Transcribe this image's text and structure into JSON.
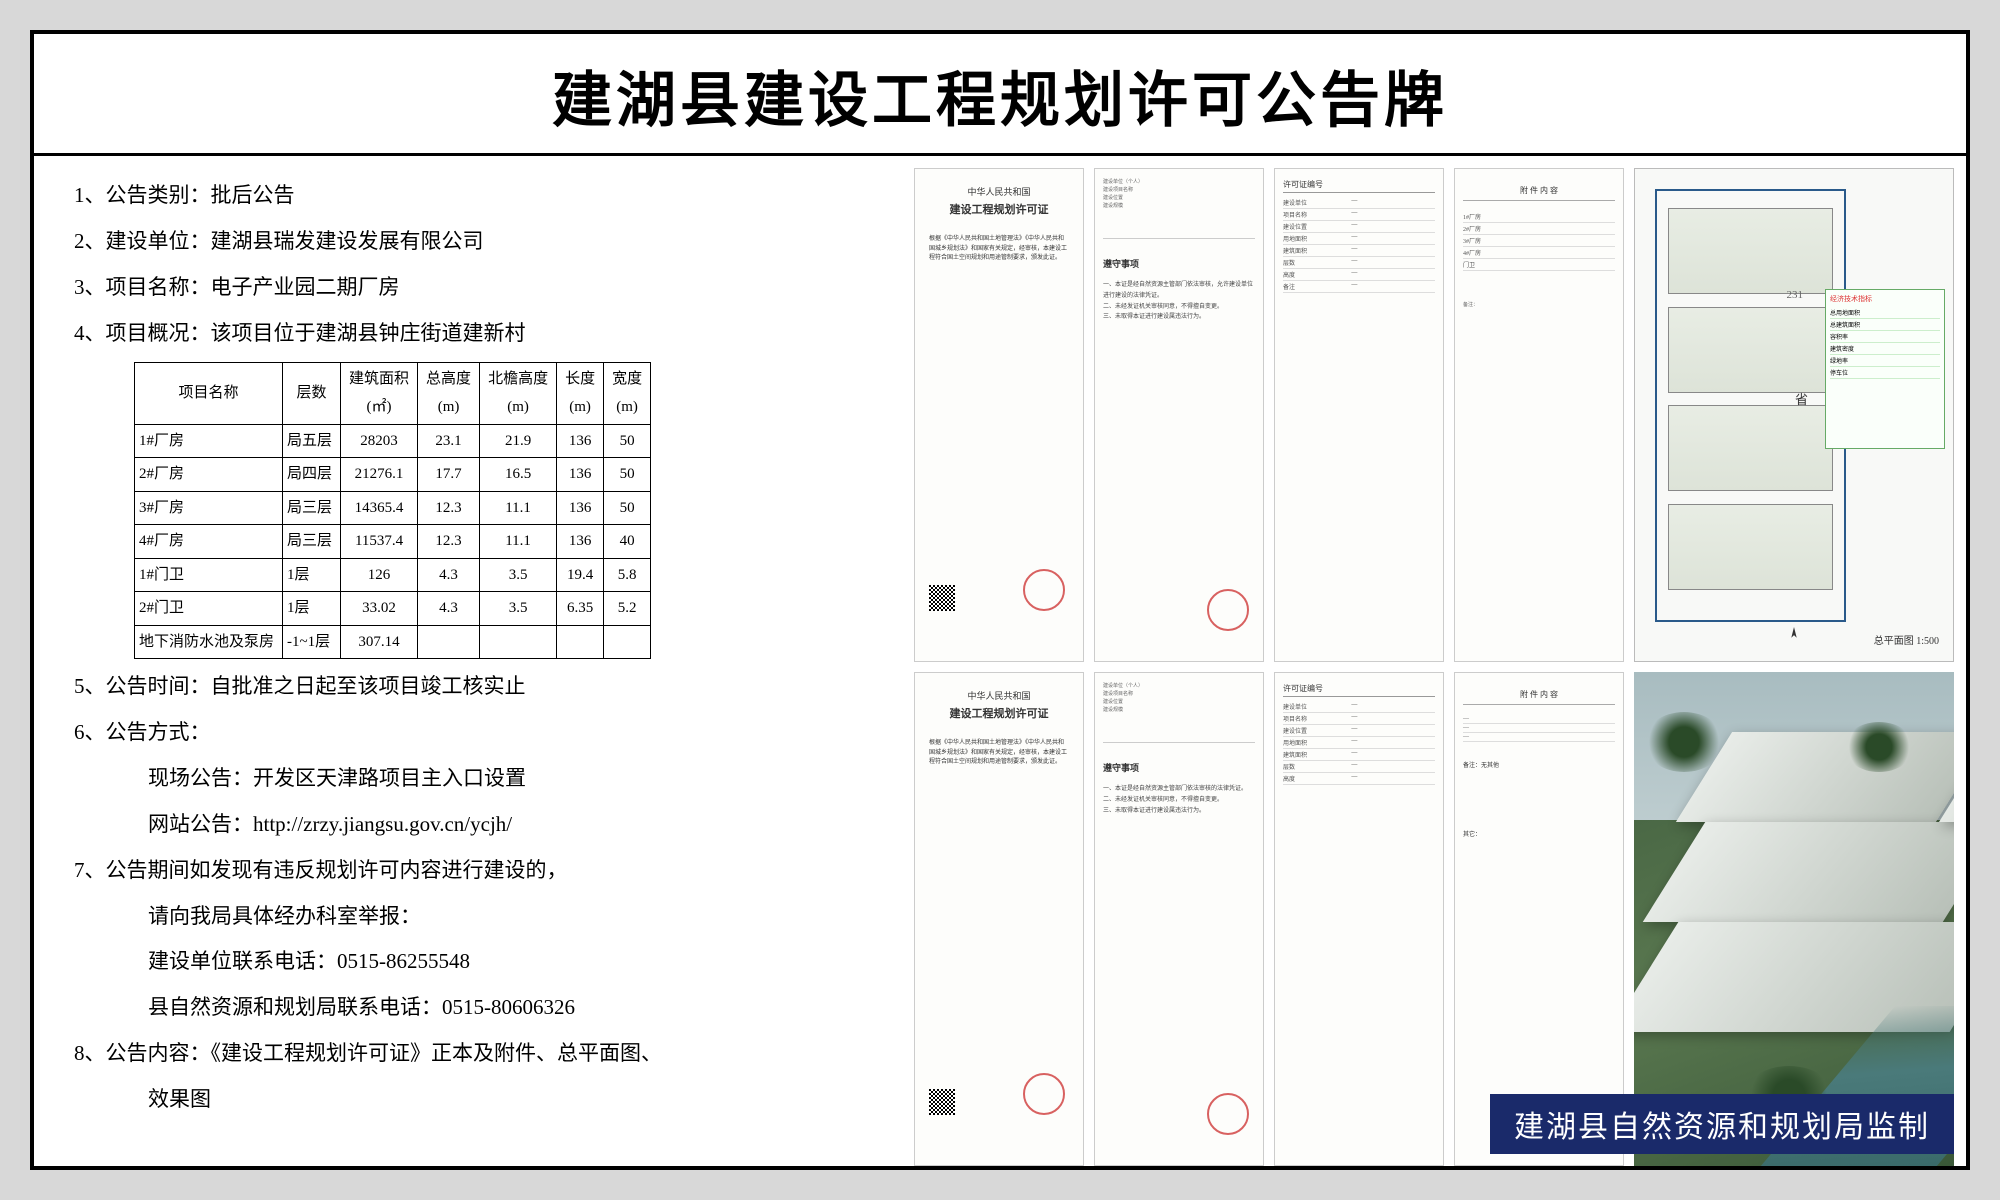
{
  "title": "建湖县建设工程规划许可公告牌",
  "items": {
    "i1": "1、公告类别：批后公告",
    "i2": "2、建设单位：建湖县瑞发建设发展有限公司",
    "i3": "3、项目名称：电子产业园二期厂房",
    "i4": "4、项目概况：该项目位于建湖县钟庄街道建新村",
    "i5": "5、公告时间：自批准之日起至该项目竣工核实止",
    "i6": "6、公告方式：",
    "i6a": "现场公告：开发区天津路项目主入口设置",
    "i6b": "网站公告：http://zrzy.jiangsu.gov.cn/ycjh/",
    "i7": "7、公告期间如发现有违反规划许可内容进行建设的，",
    "i7a": "请向我局具体经办科室举报：",
    "i7b": "建设单位联系电话：0515-86255548",
    "i7c": "县自然资源和规划局联系电话：0515-80606326",
    "i8": "8、公告内容：《建设工程规划许可证》正本及附件、总平面图、",
    "i8a": "效果图"
  },
  "table": {
    "columns": [
      "项目名称",
      "层数",
      "建筑面积\n(㎡)",
      "总高度\n(m)",
      "北檐高度\n(m)",
      "长度\n(m)",
      "宽度\n(m)"
    ],
    "rows": [
      [
        "1#厂房",
        "局五层",
        "28203",
        "23.1",
        "21.9",
        "136",
        "50"
      ],
      [
        "2#厂房",
        "局四层",
        "21276.1",
        "17.7",
        "16.5",
        "136",
        "50"
      ],
      [
        "3#厂房",
        "局三层",
        "14365.4",
        "12.3",
        "11.1",
        "136",
        "50"
      ],
      [
        "4#厂房",
        "局三层",
        "11537.4",
        "12.3",
        "11.1",
        "136",
        "40"
      ],
      [
        "1#门卫",
        "1层",
        "126",
        "4.3",
        "3.5",
        "19.4",
        "5.8"
      ],
      [
        "2#门卫",
        "1层",
        "33.02",
        "4.3",
        "3.5",
        "6.35",
        "5.2"
      ],
      [
        "地下消防水池及泵房",
        "-1~1层",
        "307.14",
        "",
        "",
        "",
        ""
      ]
    ]
  },
  "cert": {
    "country": "中华人民共和国",
    "name": "建设工程规划许可证",
    "body": "根据《中华人民共和国土地管理法》《中华人民共和国城乡规划法》和国家有关规定，经审核，本建设工程符合国土空间规划和用途管制要求，颁发此证。"
  },
  "notes": {
    "title": "遵守事项"
  },
  "plan": {
    "lot_label": "231",
    "road_label": "省",
    "legend_title": "经济技术指标",
    "plan_title": "总平面图  1:500"
  },
  "footer": "建湖县自然资源和规划局监制"
}
